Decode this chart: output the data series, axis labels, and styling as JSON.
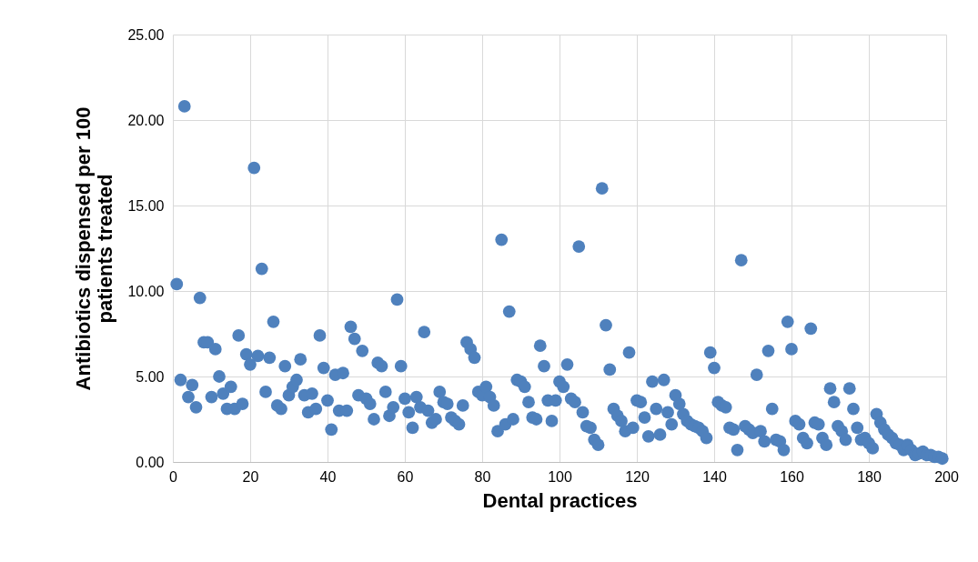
{
  "chart_data": {
    "type": "scatter",
    "xlabel": "Dental practices",
    "ylabel": "Antibiotics dispensed per 100 patients treated",
    "x": [
      1,
      2,
      3,
      4,
      5,
      6,
      7,
      8,
      9,
      10,
      11,
      12,
      13,
      14,
      15,
      16,
      17,
      18,
      19,
      20,
      21,
      22,
      23,
      24,
      25,
      26,
      27,
      28,
      29,
      30,
      31,
      32,
      33,
      34,
      35,
      36,
      37,
      38,
      39,
      40,
      41,
      42,
      43,
      44,
      45,
      46,
      47,
      48,
      49,
      50,
      51,
      52,
      53,
      54,
      55,
      56,
      57,
      58,
      59,
      60,
      61,
      62,
      63,
      64,
      65,
      66,
      67,
      68,
      69,
      70,
      71,
      72,
      73,
      74,
      75,
      76,
      77,
      78,
      79,
      80,
      81,
      82,
      83,
      84,
      85,
      86,
      87,
      88,
      89,
      90,
      91,
      92,
      93,
      94,
      95,
      96,
      97,
      98,
      99,
      100,
      101,
      102,
      103,
      104,
      105,
      106,
      107,
      108,
      109,
      110,
      111,
      112,
      113,
      114,
      115,
      116,
      117,
      118,
      119,
      120,
      121,
      122,
      123,
      124,
      125,
      126,
      127,
      128,
      129,
      130,
      131,
      132,
      133,
      134,
      135,
      136,
      137,
      138,
      139,
      140,
      141,
      142,
      143,
      144,
      145,
      146,
      147,
      148,
      149,
      150,
      151,
      152,
      153,
      154,
      155,
      156,
      157,
      158,
      159,
      160,
      161,
      162,
      163,
      164,
      165,
      166,
      167,
      168,
      169,
      170,
      171,
      172,
      173,
      174,
      175,
      176,
      177,
      178,
      179,
      180,
      181,
      182,
      183,
      184,
      185,
      186,
      187,
      188,
      189,
      190,
      191,
      192,
      193,
      194,
      195,
      196,
      197,
      198,
      199
    ],
    "values": [
      10.4,
      4.8,
      20.8,
      3.8,
      4.5,
      3.2,
      9.6,
      7.0,
      7.0,
      3.8,
      6.6,
      5.0,
      4.0,
      3.1,
      4.4,
      3.1,
      7.4,
      3.4,
      6.3,
      5.7,
      17.2,
      6.2,
      11.3,
      4.1,
      6.1,
      8.2,
      3.3,
      3.1,
      5.6,
      3.9,
      4.4,
      4.8,
      6.0,
      3.9,
      2.9,
      4.0,
      3.1,
      7.4,
      5.5,
      3.6,
      1.9,
      5.1,
      3.0,
      5.2,
      3.0,
      7.9,
      7.2,
      3.9,
      6.5,
      3.7,
      3.4,
      2.5,
      5.8,
      5.6,
      4.1,
      2.7,
      3.2,
      9.5,
      5.6,
      3.7,
      2.9,
      2.0,
      3.8,
      3.2,
      7.6,
      3.0,
      2.3,
      2.5,
      4.1,
      3.5,
      3.4,
      2.6,
      2.4,
      2.2,
      3.3,
      7.0,
      6.6,
      6.1,
      4.1,
      3.9,
      4.4,
      3.8,
      3.3,
      1.8,
      13.0,
      2.2,
      8.8,
      2.5,
      4.8,
      4.7,
      4.4,
      3.5,
      2.6,
      2.5,
      6.8,
      5.6,
      3.6,
      2.4,
      3.6,
      4.7,
      4.4,
      5.7,
      3.7,
      3.5,
      12.6,
      2.9,
      2.1,
      2.0,
      1.3,
      1.0,
      16.0,
      8.0,
      5.4,
      3.1,
      2.7,
      2.4,
      1.8,
      6.4,
      2.0,
      3.6,
      3.5,
      2.6,
      1.5,
      4.7,
      3.1,
      1.6,
      4.8,
      2.9,
      2.2,
      3.9,
      3.4,
      2.8,
      2.4,
      2.2,
      2.1,
      2.0,
      1.8,
      1.4,
      6.4,
      5.5,
      3.5,
      3.3,
      3.2,
      2.0,
      1.9,
      0.7,
      11.8,
      2.1,
      1.9,
      1.7,
      5.1,
      1.8,
      1.2,
      6.5,
      3.1,
      1.3,
      1.2,
      0.7,
      8.2,
      6.6,
      2.4,
      2.2,
      1.4,
      1.1,
      7.8,
      2.3,
      2.2,
      1.4,
      1.0,
      4.3,
      3.5,
      2.1,
      1.8,
      1.3,
      4.3,
      3.1,
      2.0,
      1.3,
      1.4,
      1.1,
      0.8,
      2.8,
      2.3,
      1.9,
      1.6,
      1.4,
      1.1,
      1.0,
      0.7,
      1.0,
      0.7,
      0.4,
      0.5,
      0.6,
      0.4,
      0.4,
      0.3,
      0.3,
      0.2
    ],
    "color": "#4f81bd",
    "marker": "circle",
    "grid": true,
    "xlim": [
      0,
      200
    ],
    "xticks": [
      0,
      20,
      40,
      60,
      80,
      100,
      120,
      140,
      160,
      180,
      200
    ],
    "ylim": [
      0,
      25
    ],
    "yticks": [
      {
        "value": 0,
        "label": "0.00"
      },
      {
        "value": 5,
        "label": "5.00"
      },
      {
        "value": 10,
        "label": "10.00"
      },
      {
        "value": 15,
        "label": "15.00"
      },
      {
        "value": 20,
        "label": "20.00"
      },
      {
        "value": 25,
        "label": "25.00"
      }
    ]
  }
}
